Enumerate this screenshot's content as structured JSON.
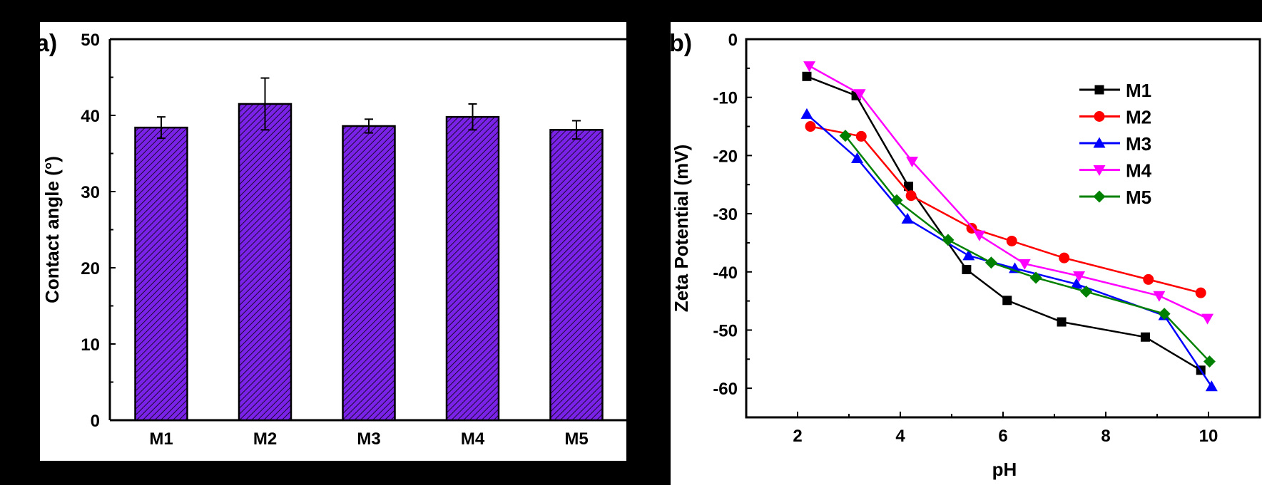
{
  "background": "#000000",
  "chart_data": [
    {
      "panel_label": "a)",
      "type": "bar",
      "categories": [
        "M1",
        "M2",
        "M3",
        "M4",
        "M5"
      ],
      "values": [
        38.4,
        41.5,
        38.6,
        39.8,
        38.1
      ],
      "errors": [
        1.4,
        3.4,
        0.9,
        1.7,
        1.2
      ],
      "xlabel": "",
      "ylabel": "Contact angle (°)",
      "ylim": [
        0,
        50
      ],
      "yticks": [
        0,
        10,
        20,
        30,
        40,
        50
      ],
      "bar_color": "#7B22E8",
      "bar_pattern": "diagonal hatch",
      "grid": false
    },
    {
      "panel_label": "b)",
      "type": "line",
      "xlabel": "pH",
      "ylabel": "Zeta Potential (mV)",
      "xlim": [
        1,
        11
      ],
      "ylim": [
        -65,
        0
      ],
      "xticks": [
        2,
        4,
        6,
        8,
        10
      ],
      "yticks": [
        0,
        -10,
        -20,
        -30,
        -40,
        -50,
        -60
      ],
      "grid": false,
      "legend_position": "top-right",
      "series": [
        {
          "name": "M1",
          "color": "#000000",
          "marker": "square",
          "x": [
            2.18,
            3.14,
            4.16,
            5.29,
            6.08,
            7.14,
            8.77,
            9.85
          ],
          "y": [
            -6.4,
            -9.7,
            -25.3,
            -39.6,
            -44.9,
            -48.6,
            -51.2,
            -56.9
          ]
        },
        {
          "name": "M2",
          "color": "#FF0000",
          "marker": "circle",
          "x": [
            2.25,
            3.24,
            4.21,
            5.39,
            6.17,
            7.19,
            8.83,
            9.85
          ],
          "y": [
            -15.0,
            -16.7,
            -26.9,
            -32.5,
            -34.7,
            -37.6,
            -41.3,
            -43.6
          ]
        },
        {
          "name": "M3",
          "color": "#0000FF",
          "marker": "triangle-up",
          "x": [
            2.18,
            3.16,
            4.14,
            5.33,
            6.23,
            7.43,
            9.14,
            10.06
          ],
          "y": [
            -12.9,
            -20.5,
            -30.9,
            -37.2,
            -39.4,
            -42.1,
            -47.5,
            -59.7
          ]
        },
        {
          "name": "M4",
          "color": "#FF00FF",
          "marker": "triangle-down",
          "x": [
            2.23,
            3.21,
            4.23,
            5.54,
            6.42,
            7.48,
            9.04,
            9.98
          ],
          "y": [
            -4.6,
            -9.4,
            -21.0,
            -33.7,
            -38.6,
            -40.7,
            -44.1,
            -48.0
          ]
        },
        {
          "name": "M5",
          "color": "#008000",
          "marker": "diamond",
          "x": [
            2.93,
            3.93,
            4.93,
            5.77,
            6.64,
            7.62,
            9.14,
            10.02
          ],
          "y": [
            -16.6,
            -27.7,
            -34.5,
            -38.4,
            -41.0,
            -43.4,
            -47.2,
            -55.4
          ]
        }
      ]
    }
  ]
}
